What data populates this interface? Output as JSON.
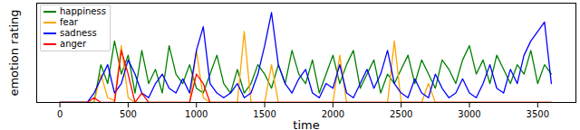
{
  "chart_data": {
    "type": "line",
    "x_label": "time",
    "y_label": "emotion rating",
    "x": [
      0,
      50,
      100,
      150,
      200,
      250,
      300,
      350,
      400,
      450,
      500,
      550,
      600,
      650,
      700,
      750,
      800,
      850,
      900,
      950,
      1000,
      1050,
      1100,
      1150,
      1200,
      1250,
      1300,
      1350,
      1400,
      1450,
      1500,
      1550,
      1600,
      1650,
      1700,
      1750,
      1800,
      1850,
      1900,
      1950,
      2000,
      2050,
      2100,
      2150,
      2200,
      2250,
      2300,
      2350,
      2400,
      2450,
      2500,
      2550,
      2600,
      2650,
      2700,
      2750,
      2800,
      2850,
      2900,
      2950,
      3000,
      3050,
      3100,
      3150,
      3200,
      3250,
      3300,
      3350,
      3400,
      3450,
      3500,
      3550,
      3600
    ],
    "series": [
      {
        "name": "happiness",
        "color": "green",
        "values": [
          0,
          0,
          0,
          0,
          0,
          0,
          0.4,
          0.2,
          0.65,
          0.3,
          0.5,
          0.1,
          0.55,
          0.2,
          0.35,
          0.1,
          0.6,
          0.3,
          0.2,
          0.4,
          0.15,
          0.1,
          0.3,
          0.5,
          0.2,
          0.1,
          0.35,
          0.1,
          0.2,
          0.4,
          0.3,
          0.15,
          0.4,
          0.2,
          0.55,
          0.3,
          0.2,
          0.45,
          0.1,
          0.3,
          0.5,
          0.2,
          0.4,
          0.55,
          0.15,
          0.3,
          0.45,
          0.1,
          0.3,
          0.2,
          0.35,
          0.5,
          0.2,
          0.45,
          0.3,
          0.15,
          0.45,
          0.35,
          0.2,
          0.45,
          0.6,
          0.3,
          0.45,
          0.2,
          0.5,
          0.35,
          0.2,
          0.4,
          0.3,
          0.55,
          0.2,
          0.4,
          0.3
        ]
      },
      {
        "name": "fear",
        "color": "orange",
        "values": [
          0,
          0,
          0,
          0,
          0,
          0,
          0.3,
          0.05,
          0.02,
          0.6,
          0.05,
          0,
          0,
          0,
          0,
          0,
          0,
          0,
          0,
          0,
          0.55,
          0.05,
          0,
          0,
          0,
          0,
          0,
          0.75,
          0,
          0,
          0,
          0.4,
          0,
          0,
          0,
          0,
          0,
          0,
          0,
          0,
          0,
          0.5,
          0,
          0,
          0,
          0,
          0,
          0,
          0,
          0.65,
          0,
          0,
          0,
          0,
          0.2,
          0,
          0,
          0,
          0,
          0,
          0,
          0,
          0,
          0,
          0,
          0,
          0,
          0,
          0,
          0,
          0,
          0,
          0
        ]
      },
      {
        "name": "sadness",
        "color": "blue",
        "values": [
          0,
          0,
          0,
          0,
          0,
          0.1,
          0.25,
          0.4,
          0.1,
          0.2,
          0.45,
          0.3,
          0.1,
          0.05,
          0.2,
          0.3,
          0.15,
          0.1,
          0.25,
          0.1,
          0.55,
          0.8,
          0.2,
          0.1,
          0.05,
          0.1,
          0.2,
          0.05,
          0.1,
          0.3,
          0.6,
          0.95,
          0.4,
          0.2,
          0.1,
          0.25,
          0.35,
          0.1,
          0.05,
          0.2,
          0.15,
          0.4,
          0.1,
          0.05,
          0.2,
          0.35,
          0.15,
          0.3,
          0.55,
          0.2,
          0.1,
          0.05,
          0.25,
          0.1,
          0.05,
          0.3,
          0.15,
          0.05,
          0.1,
          0.25,
          0.1,
          0.05,
          0.2,
          0.4,
          0.15,
          0.1,
          0.35,
          0.2,
          0.5,
          0.65,
          0.75,
          0.85,
          0.2
        ]
      },
      {
        "name": "anger",
        "color": "red",
        "values": [
          0,
          0,
          0,
          0,
          0,
          0.05,
          0,
          0,
          0,
          0.55,
          0.3,
          0,
          0.1,
          0,
          0,
          0,
          0,
          0,
          0,
          0,
          0.3,
          0.2,
          0,
          0,
          0,
          0,
          0,
          0,
          0,
          0,
          0,
          0,
          0,
          0,
          0,
          0,
          0,
          0,
          0,
          0,
          0,
          0,
          0,
          0,
          0,
          0,
          0,
          0,
          0,
          0,
          0,
          0,
          0,
          0,
          0,
          0,
          0,
          0,
          0,
          0,
          0,
          0,
          0,
          0,
          0,
          0,
          0,
          0,
          0,
          0,
          0,
          0,
          0
        ]
      }
    ],
    "xlim": [
      -170,
      3780
    ],
    "xticks": [
      0,
      500,
      1000,
      1500,
      2000,
      2500,
      3000,
      3500
    ],
    "ylim": [
      0,
      1.05
    ],
    "yticks": [],
    "tick_labels": "x",
    "grid": false,
    "legend": "upper left"
  }
}
